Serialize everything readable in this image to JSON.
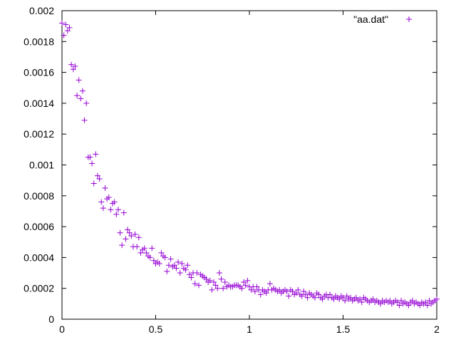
{
  "chart_data": {
    "type": "scatter",
    "title": "",
    "xlabel": "",
    "ylabel": "",
    "xlim": [
      0,
      2
    ],
    "ylim": [
      0,
      0.002
    ],
    "grid": false,
    "legend_placement": "top-right",
    "marker": "plus",
    "x_ticks": [
      "0",
      "0.5",
      "1",
      "1.5",
      "2"
    ],
    "y_ticks": [
      "0",
      "0.0002",
      "0.0004",
      "0.0006",
      "0.0008",
      "0.001",
      "0.0012",
      "0.0014",
      "0.0016",
      "0.0018",
      "0.002"
    ],
    "series": [
      {
        "name": "\"aa.dat\"",
        "color": "#9400d3",
        "points": [
          [
            0.0,
            0.00192
          ],
          [
            0.01,
            0.00184
          ],
          [
            0.02,
            0.00191
          ],
          [
            0.03,
            0.00187
          ],
          [
            0.04,
            0.00189
          ],
          [
            0.05,
            0.00165
          ],
          [
            0.06,
            0.00162
          ],
          [
            0.07,
            0.00164
          ],
          [
            0.08,
            0.00145
          ],
          [
            0.09,
            0.00155
          ],
          [
            0.1,
            0.00143
          ],
          [
            0.11,
            0.00148
          ],
          [
            0.12,
            0.00129
          ],
          [
            0.13,
            0.0014
          ],
          [
            0.14,
            0.00105
          ],
          [
            0.15,
            0.00105
          ],
          [
            0.16,
            0.00101
          ],
          [
            0.17,
            0.00088
          ],
          [
            0.18,
            0.00107
          ],
          [
            0.19,
            0.00093
          ],
          [
            0.2,
            0.00091
          ],
          [
            0.21,
            0.00076
          ],
          [
            0.22,
            0.00072
          ],
          [
            0.23,
            0.00085
          ],
          [
            0.24,
            0.00078
          ],
          [
            0.25,
            0.00079
          ],
          [
            0.26,
            0.00071
          ],
          [
            0.27,
            0.00075
          ],
          [
            0.28,
            0.00076
          ],
          [
            0.29,
            0.00068
          ],
          [
            0.3,
            0.00071
          ],
          [
            0.31,
            0.00056
          ],
          [
            0.32,
            0.00048
          ],
          [
            0.33,
            0.00069
          ],
          [
            0.34,
            0.00052
          ],
          [
            0.35,
            0.00058
          ],
          [
            0.36,
            0.00056
          ],
          [
            0.37,
            0.00054
          ],
          [
            0.38,
            0.00047
          ],
          [
            0.39,
            0.00055
          ],
          [
            0.4,
            0.00047
          ],
          [
            0.41,
            0.00053
          ],
          [
            0.42,
            0.00043
          ],
          [
            0.43,
            0.00045
          ],
          [
            0.44,
            0.00046
          ],
          [
            0.45,
            0.00043
          ],
          [
            0.46,
            0.00041
          ],
          [
            0.47,
            0.0004
          ],
          [
            0.48,
            0.00046
          ],
          [
            0.49,
            0.00038
          ],
          [
            0.5,
            0.00036
          ],
          [
            0.51,
            0.00037
          ],
          [
            0.52,
            0.00036
          ],
          [
            0.53,
            0.00043
          ],
          [
            0.54,
            0.00041
          ],
          [
            0.55,
            0.0004
          ],
          [
            0.56,
            0.00031
          ],
          [
            0.57,
            0.00035
          ],
          [
            0.58,
            0.00039
          ],
          [
            0.59,
            0.00034
          ],
          [
            0.6,
            0.00035
          ],
          [
            0.61,
            0.00033
          ],
          [
            0.62,
            0.00037
          ],
          [
            0.63,
            0.0003
          ],
          [
            0.64,
            0.00036
          ],
          [
            0.65,
            0.00033
          ],
          [
            0.66,
            0.00032
          ],
          [
            0.67,
            0.00035
          ],
          [
            0.68,
            0.00029
          ],
          [
            0.69,
            0.00027
          ],
          [
            0.7,
            0.0003
          ],
          [
            0.71,
            0.00023
          ],
          [
            0.72,
            0.0003
          ],
          [
            0.73,
            0.00022
          ],
          [
            0.74,
            0.00029
          ],
          [
            0.75,
            0.00028
          ],
          [
            0.76,
            0.00027
          ],
          [
            0.77,
            0.00026
          ],
          [
            0.78,
            0.00024
          ],
          [
            0.79,
            0.00025
          ],
          [
            0.8,
            0.00019
          ],
          [
            0.81,
            0.00024
          ],
          [
            0.82,
            0.00022
          ],
          [
            0.83,
            0.0002
          ],
          [
            0.84,
            0.0003
          ],
          [
            0.85,
            0.00026
          ],
          [
            0.86,
            0.0002
          ],
          [
            0.87,
            0.00024
          ],
          [
            0.88,
            0.00021
          ],
          [
            0.89,
            0.00022
          ],
          [
            0.9,
            0.00021
          ],
          [
            0.91,
            0.00021
          ],
          [
            0.92,
            0.00022
          ],
          [
            0.93,
            0.00022
          ],
          [
            0.94,
            0.00022
          ],
          [
            0.95,
            0.00021
          ],
          [
            0.96,
            0.0002
          ],
          [
            0.97,
            0.00024
          ],
          [
            0.98,
            0.00022
          ],
          [
            0.99,
            0.00025
          ],
          [
            1.0,
            0.00021
          ],
          [
            1.01,
            0.00019
          ],
          [
            1.02,
            0.00021
          ],
          [
            1.03,
            0.00018
          ],
          [
            1.04,
            0.00021
          ],
          [
            1.05,
            0.00019
          ],
          [
            1.06,
            0.00016
          ],
          [
            1.07,
            0.00019
          ],
          [
            1.08,
            0.00018
          ],
          [
            1.09,
            0.00017
          ],
          [
            1.1,
            0.00019
          ],
          [
            1.11,
            0.00023
          ],
          [
            1.12,
            0.00019
          ],
          [
            1.13,
            0.0002
          ],
          [
            1.14,
            0.00019
          ],
          [
            1.15,
            0.00018
          ],
          [
            1.16,
            0.00019
          ],
          [
            1.17,
            0.00017
          ],
          [
            1.18,
            0.00018
          ],
          [
            1.19,
            0.00019
          ],
          [
            1.2,
            0.00018
          ],
          [
            1.21,
            0.00015
          ],
          [
            1.22,
            0.00019
          ],
          [
            1.23,
            0.00018
          ],
          [
            1.24,
            0.00016
          ],
          [
            1.25,
            0.00017
          ],
          [
            1.26,
            0.00019
          ],
          [
            1.27,
            0.00016
          ],
          [
            1.28,
            0.00015
          ],
          [
            1.29,
            0.00018
          ],
          [
            1.3,
            0.00016
          ],
          [
            1.31,
            0.00014
          ],
          [
            1.32,
            0.00017
          ],
          [
            1.33,
            0.00016
          ],
          [
            1.34,
            0.00015
          ],
          [
            1.35,
            0.00014
          ],
          [
            1.36,
            0.00017
          ],
          [
            1.37,
            0.00016
          ],
          [
            1.38,
            0.00014
          ],
          [
            1.39,
            0.00013
          ],
          [
            1.4,
            0.00015
          ],
          [
            1.41,
            0.00016
          ],
          [
            1.42,
            0.00014
          ],
          [
            1.43,
            0.00016
          ],
          [
            1.44,
            0.00014
          ],
          [
            1.45,
            0.00013
          ],
          [
            1.46,
            0.00015
          ],
          [
            1.47,
            0.00014
          ],
          [
            1.48,
            0.00013
          ],
          [
            1.49,
            0.00015
          ],
          [
            1.5,
            0.00014
          ],
          [
            1.51,
            0.00012
          ],
          [
            1.52,
            0.00015
          ],
          [
            1.53,
            0.00013
          ],
          [
            1.54,
            0.00014
          ],
          [
            1.55,
            0.00012
          ],
          [
            1.56,
            0.00013
          ],
          [
            1.57,
            0.00014
          ],
          [
            1.58,
            0.00012
          ],
          [
            1.59,
            0.00013
          ],
          [
            1.6,
            0.00011
          ],
          [
            1.61,
            0.00014
          ],
          [
            1.62,
            0.00013
          ],
          [
            1.63,
            0.00012
          ],
          [
            1.64,
            0.00011
          ],
          [
            1.65,
            0.00012
          ],
          [
            1.66,
            0.00013
          ],
          [
            1.67,
            0.00011
          ],
          [
            1.68,
            0.00012
          ],
          [
            1.69,
            0.00011
          ],
          [
            1.7,
            0.0001
          ],
          [
            1.71,
            0.00012
          ],
          [
            1.72,
            0.00011
          ],
          [
            1.73,
            0.00012
          ],
          [
            1.74,
            0.00011
          ],
          [
            1.75,
            0.00012
          ],
          [
            1.76,
            0.0001
          ],
          [
            1.77,
            0.00011
          ],
          [
            1.78,
            0.00012
          ],
          [
            1.79,
            0.00011
          ],
          [
            1.8,
            9e-05
          ],
          [
            1.81,
            0.00012
          ],
          [
            1.82,
            0.0001
          ],
          [
            1.83,
            0.00011
          ],
          [
            1.84,
            0.0001
          ],
          [
            1.85,
            9e-05
          ],
          [
            1.86,
            0.00011
          ],
          [
            1.87,
            0.00012
          ],
          [
            1.88,
            0.0001
          ],
          [
            1.89,
            0.00011
          ],
          [
            1.9,
            0.0001
          ],
          [
            1.91,
            9e-05
          ],
          [
            1.92,
            0.00011
          ],
          [
            1.93,
            0.0001
          ],
          [
            1.94,
            0.00011
          ],
          [
            1.95,
            9e-05
          ],
          [
            1.96,
            0.00012
          ],
          [
            1.97,
            0.0001
          ],
          [
            1.98,
            0.00011
          ],
          [
            1.99,
            0.00012
          ],
          [
            2.0,
            0.00013
          ]
        ]
      }
    ]
  }
}
